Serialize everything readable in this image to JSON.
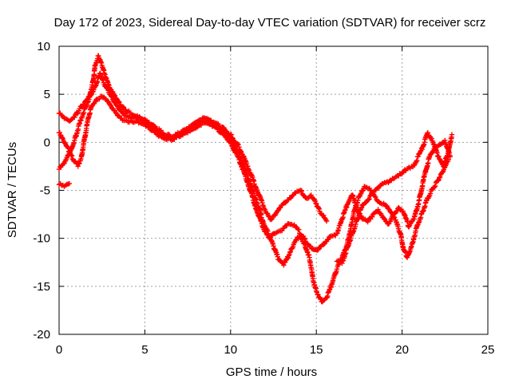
{
  "chart_data": {
    "type": "scatter",
    "title": "Day 172 of 2023, Sidereal Day-to-day VTEC variation (SDTVAR) for receiver scrz",
    "xlabel": "GPS time / hours",
    "ylabel": "SDTVAR / TECUs",
    "xlim": [
      0,
      25
    ],
    "ylim": [
      -20,
      10
    ],
    "xticks": [
      0,
      5,
      10,
      15,
      20,
      25
    ],
    "yticks": [
      -20,
      -15,
      -10,
      -5,
      0,
      5,
      10
    ],
    "xtick_labels": [
      "0",
      "5",
      "10",
      "15",
      "20",
      "25"
    ],
    "ytick_labels": [
      "-20",
      "-15",
      "-10",
      "-5",
      "0",
      "5",
      "10"
    ],
    "grid": true,
    "marker": "+",
    "series_color": "#ff0000",
    "series": [
      {
        "name": "track-1",
        "points": [
          [
            0.0,
            3.0
          ],
          [
            0.3,
            2.5
          ],
          [
            0.6,
            2.2
          ],
          [
            0.9,
            2.6
          ],
          [
            1.2,
            3.5
          ],
          [
            1.5,
            4.2
          ],
          [
            1.8,
            5.0
          ],
          [
            2.0,
            6.5
          ],
          [
            2.1,
            8.0
          ],
          [
            2.3,
            9.0
          ],
          [
            2.5,
            8.0
          ],
          [
            2.7,
            6.8
          ],
          [
            3.0,
            5.5
          ],
          [
            3.3,
            4.6
          ],
          [
            3.6,
            3.8
          ],
          [
            4.0,
            3.2
          ],
          [
            4.5,
            2.7
          ],
          [
            5.0,
            2.4
          ],
          [
            5.5,
            1.8
          ],
          [
            6.0,
            1.0
          ],
          [
            6.5,
            0.6
          ],
          [
            7.0,
            0.9
          ],
          [
            7.5,
            1.4
          ],
          [
            8.0,
            2.1
          ],
          [
            8.5,
            2.5
          ],
          [
            9.0,
            2.1
          ],
          [
            9.5,
            1.6
          ],
          [
            10.0,
            0.8
          ],
          [
            10.5,
            -0.5
          ],
          [
            11.0,
            -2.5
          ],
          [
            11.5,
            -4.8
          ],
          [
            12.0,
            -7.0
          ],
          [
            12.3,
            -8.0
          ],
          [
            12.6,
            -7.6
          ],
          [
            12.9,
            -6.8
          ],
          [
            13.2,
            -6.3
          ],
          [
            13.5,
            -5.8
          ],
          [
            13.8,
            -5.3
          ],
          [
            14.1,
            -5.0
          ],
          [
            14.4,
            -5.8
          ],
          [
            14.7,
            -5.5
          ],
          [
            14.9,
            -6.0
          ],
          [
            15.2,
            -7.2
          ],
          [
            15.6,
            -8.2
          ]
        ]
      },
      {
        "name": "track-2",
        "points": [
          [
            0.0,
            -2.8
          ],
          [
            0.3,
            -2.2
          ],
          [
            0.6,
            -1.2
          ],
          [
            0.9,
            0.2
          ],
          [
            1.2,
            2.0
          ],
          [
            1.5,
            3.5
          ],
          [
            1.8,
            4.8
          ],
          [
            2.1,
            5.8
          ],
          [
            2.4,
            7.2
          ],
          [
            2.6,
            6.2
          ],
          [
            2.9,
            5.2
          ],
          [
            3.2,
            4.2
          ],
          [
            3.5,
            3.4
          ],
          [
            3.8,
            2.8
          ],
          [
            4.2,
            2.5
          ],
          [
            4.6,
            2.6
          ],
          [
            5.0,
            2.3
          ],
          [
            5.5,
            1.5
          ],
          [
            6.0,
            0.8
          ],
          [
            6.5,
            0.4
          ],
          [
            7.0,
            0.7
          ],
          [
            7.5,
            1.2
          ],
          [
            8.0,
            1.8
          ],
          [
            8.5,
            2.2
          ],
          [
            9.0,
            1.9
          ],
          [
            9.5,
            1.3
          ],
          [
            10.0,
            0.4
          ],
          [
            10.5,
            -1.2
          ],
          [
            11.0,
            -3.5
          ],
          [
            11.5,
            -6.0
          ],
          [
            11.9,
            -8.3
          ],
          [
            12.2,
            -9.5
          ],
          [
            12.5,
            -10.8
          ],
          [
            12.8,
            -12.2
          ],
          [
            13.1,
            -12.8
          ],
          [
            13.4,
            -11.8
          ],
          [
            13.7,
            -10.5
          ],
          [
            14.0,
            -9.8
          ],
          [
            14.3,
            -10.5
          ],
          [
            14.6,
            -12.0
          ],
          [
            14.8,
            -14.2
          ],
          [
            15.0,
            -15.5
          ],
          [
            15.3,
            -16.6
          ],
          [
            15.6,
            -16.2
          ],
          [
            15.9,
            -14.8
          ],
          [
            16.2,
            -13.2
          ],
          [
            16.5,
            -12.0
          ],
          [
            16.8,
            -10.6
          ],
          [
            17.0,
            -9.0
          ],
          [
            17.2,
            -7.2
          ],
          [
            17.5,
            -5.6
          ],
          [
            17.8,
            -4.6
          ],
          [
            18.1,
            -4.8
          ],
          [
            18.4,
            -5.6
          ],
          [
            18.7,
            -6.3
          ],
          [
            19.0,
            -6.5
          ],
          [
            19.3,
            -7.2
          ],
          [
            19.6,
            -8.1
          ],
          [
            19.9,
            -9.5
          ],
          [
            20.1,
            -11.2
          ],
          [
            20.3,
            -12.0
          ],
          [
            20.6,
            -10.5
          ],
          [
            20.9,
            -8.6
          ],
          [
            21.2,
            -7.2
          ],
          [
            21.5,
            -5.8
          ],
          [
            21.8,
            -4.8
          ],
          [
            22.1,
            -4.0
          ],
          [
            22.4,
            -3.0
          ],
          [
            22.7,
            -1.8
          ]
        ]
      },
      {
        "name": "track-3",
        "points": [
          [
            0.0,
            1.0
          ],
          [
            0.3,
            0.0
          ],
          [
            0.6,
            -1.0
          ],
          [
            0.9,
            -2.0
          ],
          [
            1.1,
            -2.5
          ],
          [
            1.3,
            -1.5
          ],
          [
            1.5,
            0.5
          ],
          [
            1.7,
            2.5
          ],
          [
            1.9,
            3.8
          ],
          [
            2.2,
            4.5
          ],
          [
            2.5,
            4.8
          ],
          [
            2.8,
            4.3
          ],
          [
            3.1,
            3.5
          ],
          [
            3.4,
            2.8
          ],
          [
            3.7,
            2.3
          ],
          [
            4.1,
            2.1
          ],
          [
            4.5,
            2.2
          ],
          [
            5.0,
            1.9
          ],
          [
            5.5,
            1.2
          ],
          [
            6.0,
            0.5
          ],
          [
            6.5,
            0.3
          ],
          [
            7.0,
            0.6
          ],
          [
            7.5,
            1.0
          ],
          [
            8.0,
            1.5
          ],
          [
            8.5,
            2.0
          ],
          [
            9.0,
            1.7
          ],
          [
            9.5,
            1.0
          ],
          [
            10.0,
            0.0
          ],
          [
            10.5,
            -1.8
          ],
          [
            11.0,
            -4.2
          ],
          [
            11.5,
            -7.0
          ],
          [
            11.9,
            -8.9
          ],
          [
            12.2,
            -9.9
          ],
          [
            12.6,
            -9.5
          ],
          [
            13.0,
            -9.2
          ],
          [
            13.4,
            -8.5
          ],
          [
            13.8,
            -8.8
          ],
          [
            14.2,
            -9.8
          ],
          [
            14.6,
            -10.8
          ],
          [
            15.0,
            -11.2
          ],
          [
            15.4,
            -10.6
          ],
          [
            15.8,
            -9.8
          ],
          [
            16.2,
            -9.5
          ],
          [
            16.5,
            -8.0
          ],
          [
            16.8,
            -6.5
          ],
          [
            17.1,
            -5.5
          ],
          [
            17.4,
            -7.2
          ],
          [
            17.7,
            -8.0
          ],
          [
            18.0,
            -8.3
          ],
          [
            18.3,
            -7.5
          ],
          [
            18.6,
            -7.0
          ],
          [
            18.9,
            -7.8
          ],
          [
            19.2,
            -8.5
          ],
          [
            19.5,
            -7.5
          ],
          [
            19.8,
            -6.8
          ],
          [
            20.1,
            -7.4
          ],
          [
            20.4,
            -8.8
          ],
          [
            20.7,
            -8.0
          ],
          [
            21.0,
            -6.0
          ],
          [
            21.3,
            -3.5
          ],
          [
            21.6,
            -1.5
          ],
          [
            21.9,
            -0.5
          ],
          [
            22.2,
            -0.2
          ],
          [
            22.5,
            0.2
          ],
          [
            22.8,
            -1.5
          ]
        ]
      },
      {
        "name": "track-4",
        "points": [
          [
            0.0,
            -4.4
          ],
          [
            0.3,
            -4.6
          ],
          [
            0.6,
            -4.3
          ],
          [
            16.2,
            -12.4
          ],
          [
            16.5,
            -12.6
          ],
          [
            16.8,
            -11.0
          ],
          [
            17.1,
            -9.5
          ],
          [
            17.4,
            -8.0
          ],
          [
            17.7,
            -6.5
          ],
          [
            18.0,
            -6.0
          ],
          [
            18.3,
            -5.2
          ],
          [
            18.6,
            -4.8
          ],
          [
            18.9,
            -4.3
          ],
          [
            19.2,
            -4.2
          ],
          [
            19.5,
            -3.8
          ],
          [
            19.8,
            -3.5
          ],
          [
            20.1,
            -3.0
          ],
          [
            20.4,
            -2.6
          ],
          [
            20.7,
            -2.4
          ],
          [
            21.2,
            -0.5
          ],
          [
            21.5,
            1.0
          ],
          [
            21.8,
            0.0
          ],
          [
            22.1,
            -1.5
          ],
          [
            22.4,
            -2.5
          ],
          [
            22.7,
            -1.0
          ],
          [
            22.9,
            0.8
          ]
        ]
      }
    ]
  }
}
